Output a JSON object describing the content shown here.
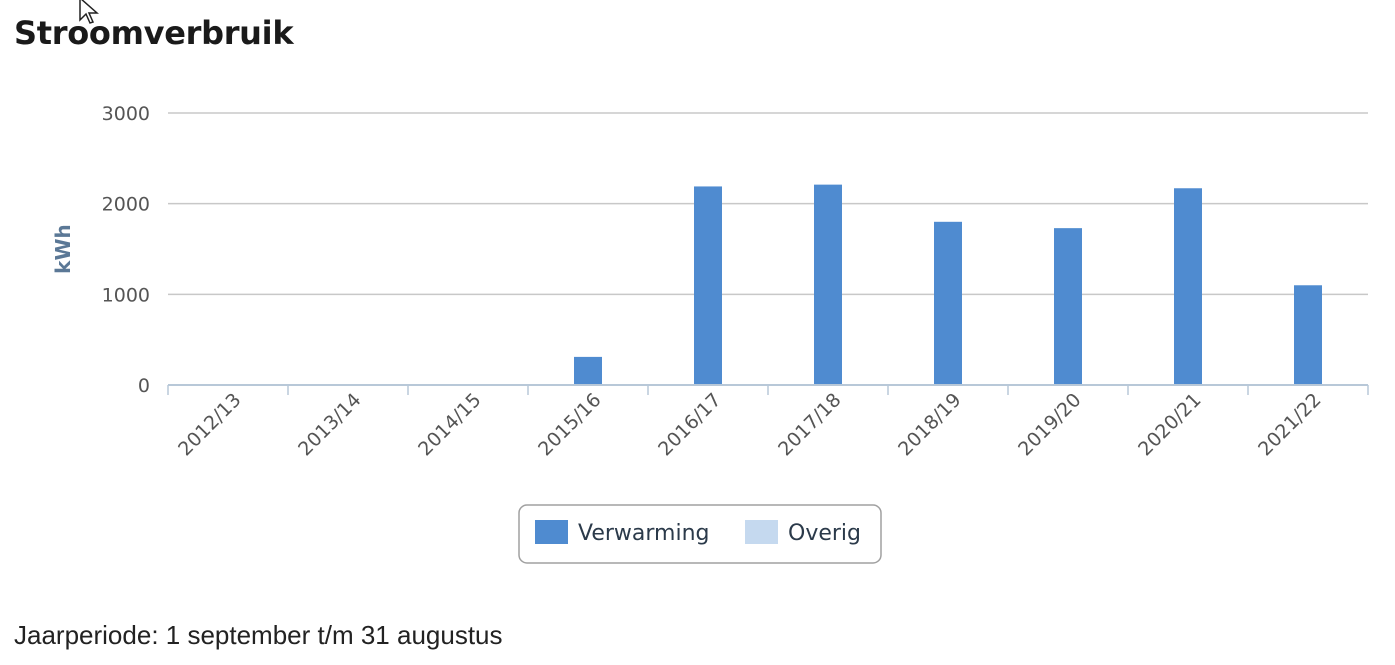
{
  "title": "Stroomverbruik",
  "footnote": "Jaarperiode: 1 september t/m 31 augustus",
  "chart_data": {
    "type": "bar",
    "title": "Stroomverbruik",
    "ylabel": "kWh",
    "xlabel": "",
    "ylim": [
      0,
      3000
    ],
    "yticks": [
      "0",
      "1000",
      "2000",
      "3000"
    ],
    "grid": true,
    "legend_position": "bottom-center",
    "categories": [
      "2012/13",
      "2013/14",
      "2014/15",
      "2015/16",
      "2016/17",
      "2017/18",
      "2018/19",
      "2019/20",
      "2020/21",
      "2021/22"
    ],
    "series": [
      {
        "name": "Verwarming",
        "color": "#4f8bd0",
        "values": [
          0,
          0,
          0,
          310,
          2190,
          2210,
          1800,
          1730,
          2170,
          1100
        ]
      },
      {
        "name": "Overig",
        "color": "#c5d9ef",
        "values": [
          0,
          0,
          0,
          0,
          0,
          0,
          0,
          0,
          0,
          0
        ]
      }
    ]
  }
}
